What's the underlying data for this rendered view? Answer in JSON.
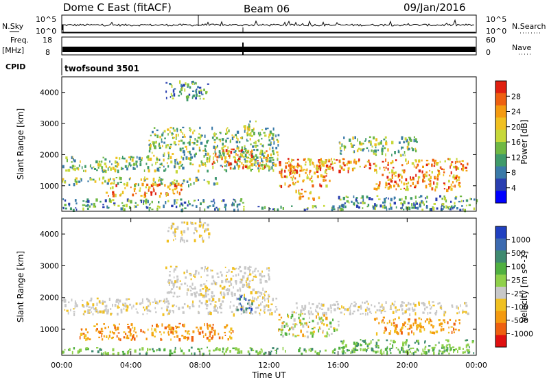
{
  "header": {
    "title": "Dome C East (fitACF)",
    "beam": "Beam 06",
    "date": "09/Jan/2016"
  },
  "strip_labels": {
    "nsky": "N.Sky",
    "nsky_ticks": [
      "10^5",
      "10^0"
    ],
    "nsearch": "N.Search",
    "nsearch_ticks": [
      "10^5",
      "10^0"
    ],
    "freq": "Freq.",
    "freq_unit": "[MHz]",
    "freq_ticks": [
      "18",
      "8"
    ],
    "nave": "Nave",
    "nave_ticks": [
      "60",
      "0"
    ],
    "cpid": "CPID",
    "cpid_value": "twofsound 3501"
  },
  "chart_data": [
    {
      "type": "heatmap",
      "name": "power-panel",
      "ylabel": "Slant Range [km]",
      "yticks": [
        1000,
        2000,
        3000,
        4000
      ],
      "ylim": [
        180,
        4500
      ],
      "xlim": [
        0,
        24
      ],
      "colorbar": {
        "label": "Power [dB]",
        "ticks": [
          4,
          8,
          12,
          16,
          20,
          24,
          28
        ],
        "range": [
          0,
          32
        ],
        "colors": [
          "#0000ff",
          "#2a3fb0",
          "#3a7aa8",
          "#3f9a6a",
          "#6fb843",
          "#c6d83a",
          "#f0c020",
          "#f49a10",
          "#ee6010",
          "#e02010"
        ]
      },
      "regions": [
        {
          "t0": 0.0,
          "t1": 24.0,
          "r0": 250,
          "r1": 380,
          "level": "low"
        },
        {
          "t0": 0.0,
          "t1": 10.5,
          "r0": 380,
          "r1": 600,
          "level": "low"
        },
        {
          "t0": 0.0,
          "t1": 9.0,
          "r0": 1050,
          "r1": 1300,
          "level": "mid"
        },
        {
          "t0": 2.5,
          "t1": 7.0,
          "r0": 700,
          "r1": 1100,
          "level": "high"
        },
        {
          "t0": 0.0,
          "t1": 12.5,
          "r0": 1500,
          "r1": 2000,
          "level": "mid"
        },
        {
          "t0": 8.5,
          "t1": 12.0,
          "r0": 1600,
          "r1": 2200,
          "level": "high"
        },
        {
          "t0": 5.0,
          "t1": 12.5,
          "r0": 2000,
          "r1": 2900,
          "level": "mid"
        },
        {
          "t0": 10.5,
          "t1": 11.5,
          "r0": 2600,
          "r1": 3100,
          "level": "mid"
        },
        {
          "t0": 13.0,
          "t1": 23.5,
          "r0": 1500,
          "r1": 1900,
          "level": "high"
        },
        {
          "t0": 12.5,
          "t1": 15.5,
          "r0": 1000,
          "r1": 1900,
          "level": "high"
        },
        {
          "t0": 13.5,
          "t1": 15.0,
          "r0": 600,
          "r1": 900,
          "level": "high"
        },
        {
          "t0": 18.0,
          "t1": 23.0,
          "r0": 900,
          "r1": 1500,
          "level": "high"
        },
        {
          "t0": 16.0,
          "t1": 24.0,
          "r0": 300,
          "r1": 700,
          "level": "low"
        },
        {
          "t0": 16.0,
          "t1": 20.5,
          "r0": 2000,
          "r1": 2600,
          "level": "mid"
        },
        {
          "t0": 6.0,
          "t1": 8.5,
          "r0": 3800,
          "r1": 4400,
          "level": "low"
        }
      ]
    },
    {
      "type": "heatmap",
      "name": "velocity-panel",
      "ylabel": "Slant Range [km]",
      "yticks": [
        1000,
        2000,
        3000,
        4000
      ],
      "ylim": [
        180,
        4500
      ],
      "xlim": [
        0,
        24
      ],
      "xticks": [
        "00:00",
        "04:00",
        "08:00",
        "12:00",
        "16:00",
        "20:00",
        "00:00"
      ],
      "xlabel": "Time UT",
      "colorbar": {
        "label": "Velocity [m s^-1]",
        "ticks": [
          "1000",
          "500",
          "100",
          "25",
          "-25",
          "-100",
          "-500",
          "-1000"
        ],
        "colors": [
          "#2040c0",
          "#3c6ab0",
          "#3f8a70",
          "#50b040",
          "#8fd04a",
          "#c8c8c8",
          "#f0c020",
          "#f49a10",
          "#ee6010",
          "#e01010"
        ]
      },
      "regions": [
        {
          "t0": 0.0,
          "t1": 24.0,
          "r0": 250,
          "r1": 450,
          "level": "green"
        },
        {
          "t0": 1.0,
          "t1": 10.0,
          "r0": 700,
          "r1": 1200,
          "level": "orange"
        },
        {
          "t0": 0.0,
          "t1": 12.5,
          "r0": 1500,
          "r1": 2000,
          "level": "grey"
        },
        {
          "t0": 6.0,
          "t1": 12.0,
          "r0": 2000,
          "r1": 3000,
          "level": "grey"
        },
        {
          "t0": 10.0,
          "t1": 11.0,
          "r0": 1600,
          "r1": 2100,
          "level": "blue"
        },
        {
          "t0": 13.0,
          "t1": 23.5,
          "r0": 1500,
          "r1": 1900,
          "level": "grey"
        },
        {
          "t0": 12.5,
          "t1": 16.0,
          "r0": 800,
          "r1": 1500,
          "level": "mixed"
        },
        {
          "t0": 18.0,
          "t1": 23.0,
          "r0": 900,
          "r1": 1400,
          "level": "orange"
        },
        {
          "t0": 16.0,
          "t1": 24.0,
          "r0": 300,
          "r1": 700,
          "level": "green"
        },
        {
          "t0": 6.0,
          "t1": 8.5,
          "r0": 3800,
          "r1": 4400,
          "level": "faint"
        }
      ]
    }
  ]
}
